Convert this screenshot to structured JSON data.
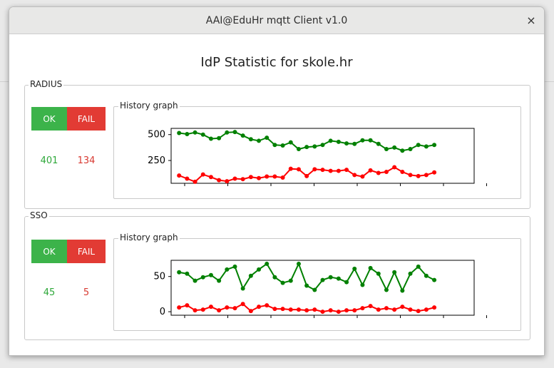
{
  "window": {
    "title": "AAI@EduHr mqtt Client v1.0",
    "close_glyph": "×"
  },
  "page_title": "IdP Statistic for skole.hr",
  "sections": [
    {
      "label": "RADIUS",
      "ok_label": "OK",
      "fail_label": "FAIL",
      "ok_count": "401",
      "fail_count": "134",
      "graph_label": "History graph",
      "chart_data": {
        "type": "line",
        "ylim": [
          30,
          560
        ],
        "yticks": [
          250,
          500
        ],
        "x_count": 38,
        "series": [
          {
            "color": "#008000",
            "values": [
              515,
              505,
              520,
              500,
              460,
              465,
              520,
              525,
              490,
              455,
              440,
              470,
              400,
              395,
              425,
              360,
              380,
              385,
              400,
              440,
              430,
              415,
              410,
              445,
              445,
              410,
              360,
              375,
              345,
              360,
              400,
              385,
              400
            ]
          },
          {
            "color": "#ff0000",
            "values": [
              105,
              75,
              45,
              115,
              90,
              60,
              50,
              75,
              70,
              90,
              80,
              95,
              95,
              85,
              170,
              165,
              100,
              165,
              160,
              150,
              150,
              160,
              110,
              95,
              155,
              130,
              140,
              185,
              140,
              110,
              100,
              110,
              135
            ]
          }
        ]
      }
    },
    {
      "label": "SSO",
      "ok_label": "OK",
      "fail_label": "FAIL",
      "ok_count": "45",
      "fail_count": "5",
      "graph_label": "History graph",
      "chart_data": {
        "type": "line",
        "ylim": [
          -5,
          73
        ],
        "yticks": [
          0,
          50
        ],
        "x_count": 38,
        "series": [
          {
            "color": "#008000",
            "values": [
              56,
              54,
              44,
              49,
              52,
              44,
              60,
              64,
              33,
              51,
              60,
              68,
              49,
              41,
              44,
              68,
              37,
              31,
              45,
              49,
              47,
              42,
              61,
              38,
              62,
              54,
              31,
              56,
              30,
              54,
              64,
              51,
              45
            ]
          },
          {
            "color": "#ff0000",
            "values": [
              6,
              9,
              2,
              3,
              7,
              2,
              6,
              5,
              11,
              1,
              7,
              9,
              4,
              4,
              3,
              3,
              2,
              3,
              0,
              2,
              0,
              2,
              2,
              5,
              8,
              3,
              5,
              3,
              7,
              3,
              1,
              3,
              6
            ]
          }
        ]
      }
    }
  ]
}
